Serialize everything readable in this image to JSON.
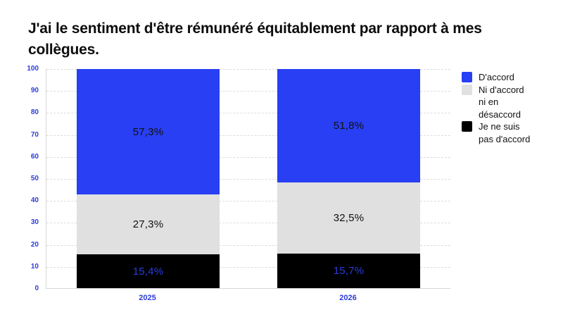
{
  "title": {
    "line1": "J'ai le sentiment d'être rémunéré équitablement par rapport à mes",
    "line2": "collègues."
  },
  "colors": {
    "accent_blue": "#283ff3",
    "neutral_gray": "#e0e0e0",
    "black": "#000000",
    "axis_label_blue": "#2b3cd9",
    "grid_gray": "#dcdcdc",
    "label_dark": "#111111"
  },
  "chart_data": {
    "type": "bar",
    "stacked": true,
    "title": "J'ai le sentiment d'être rémunéré équitablement par rapport à mes collègues.",
    "categories": [
      "2025",
      "2026"
    ],
    "series": [
      {
        "name": "D'accord",
        "color": "#283ff3",
        "label_color": "#111111",
        "values": [
          57.3,
          51.8
        ],
        "value_labels": [
          "57,3%",
          "51,8%"
        ]
      },
      {
        "name": "Ni d'accord ni en désaccord",
        "color": "#e0e0e0",
        "label_color": "#111111",
        "values": [
          27.3,
          32.5
        ],
        "value_labels": [
          "27,3%",
          "32,5%"
        ]
      },
      {
        "name": "Je ne suis pas d'accord",
        "color": "#000000",
        "label_color": "#2b3cd9",
        "values": [
          15.4,
          15.7
        ],
        "value_labels": [
          "15,4%",
          "15,7%"
        ]
      }
    ],
    "ylim": [
      0,
      100
    ],
    "yticks": [
      0,
      10,
      20,
      30,
      40,
      50,
      60,
      70,
      80,
      90,
      100
    ],
    "grid": true,
    "legend_position": "right",
    "legend_items": [
      {
        "color": "#283ff3",
        "lines": [
          "D'accord"
        ]
      },
      {
        "color": "#e0e0e0",
        "lines": [
          "Ni d'accord",
          "ni en",
          "désaccord"
        ]
      },
      {
        "color": "#000000",
        "lines": [
          "Je ne suis",
          "pas d'accord"
        ]
      }
    ]
  }
}
